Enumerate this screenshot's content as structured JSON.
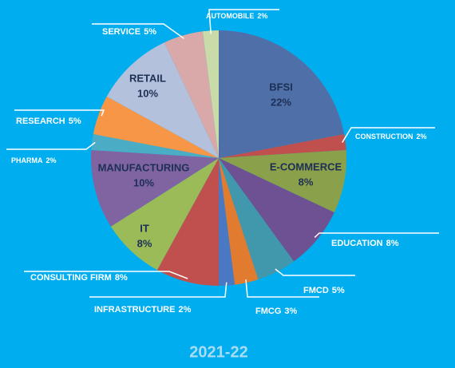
{
  "chart_data": {
    "type": "pie",
    "title": "2021-22",
    "categories": [
      "BFSI",
      "CONSTRUCTION",
      "E-COMMERCE",
      "EDUCATION",
      "FMCD",
      "FMCG",
      "INFRASTRUCTURE",
      "CONSULTING FIRM",
      "IT",
      "MANUFACTURING",
      "PHARMA",
      "RESEARCH",
      "RETAIL",
      "SERVICE",
      "AUTOMOBILE"
    ],
    "values": [
      22,
      2,
      8,
      8,
      5,
      3,
      2,
      8,
      8,
      10,
      2,
      5,
      10,
      5,
      2
    ],
    "value_labels": [
      "22%",
      "2%",
      "8%",
      "8%",
      "5%",
      "3%",
      "2%",
      "8%",
      "8%",
      "10%",
      "2%",
      "5%",
      "10%",
      "5%",
      "2%"
    ],
    "colors": [
      "#4f6fa8",
      "#c0504d",
      "#8aa04a",
      "#6e5192",
      "#4197ab",
      "#e07b30",
      "#4a78c2",
      "#c0504d",
      "#9bbb59",
      "#8064a2",
      "#4bacc6",
      "#f79646",
      "#b3c1dc",
      "#d9a8a8",
      "#c9dba8"
    ]
  }
}
